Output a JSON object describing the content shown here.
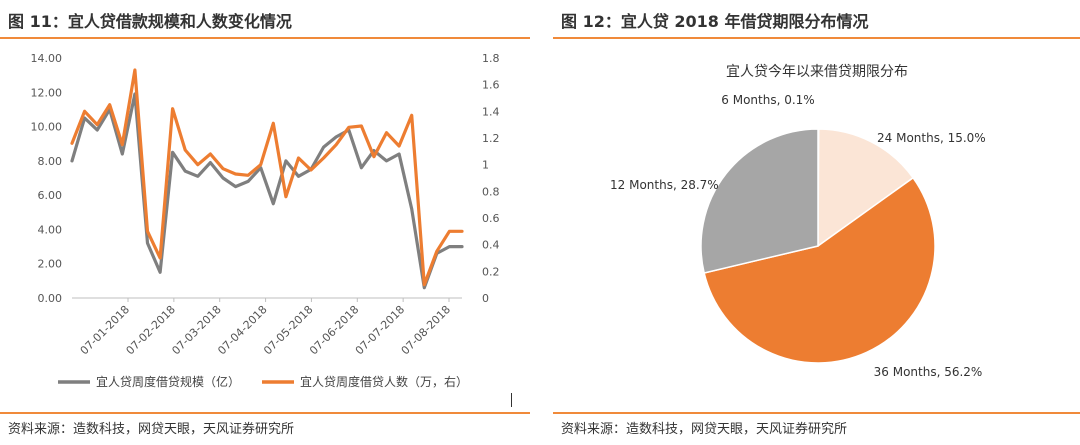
{
  "left": {
    "figure_title": "图 11：宜人贷借款规模和人数变化情况",
    "source": "资料来源：造数科技，网贷天眼，天风证券研究所"
  },
  "right": {
    "figure_title": "图 12：宜人贷 2018 年借贷期限分布情况",
    "source": "资料来源：造数科技，网贷天眼，天风证券研究所"
  },
  "colors": {
    "accent": "#F08A3A",
    "gray_series": "#7F7F7F",
    "orange_series": "#ED7D31",
    "pie_gray": "#A6A6A6",
    "pie_peach": "#FBE5D6"
  },
  "chart_data": [
    {
      "type": "line",
      "title": "",
      "x_ticks": [
        "07-01-2018",
        "07-02-2018",
        "07-03-2018",
        "07-04-2018",
        "07-05-2018",
        "07-06-2018",
        "07-07-2018",
        "07-08-2018"
      ],
      "y_left": {
        "range": [
          0,
          14
        ],
        "ticks": [
          "0.00",
          "2.00",
          "4.00",
          "6.00",
          "8.00",
          "10.00",
          "12.00",
          "14.00"
        ]
      },
      "y_right": {
        "range": [
          0,
          1.8
        ],
        "ticks": [
          "0",
          "0.2",
          "0.4",
          "0.6",
          "0.8",
          "1",
          "1.2",
          "1.4",
          "1.6",
          "1.8"
        ]
      },
      "legend_position": "bottom",
      "series": [
        {
          "name": "宜人贷周度借贷规模（亿）",
          "axis": "left",
          "color": "#7F7F7F",
          "values": [
            8.0,
            10.5,
            9.8,
            11.0,
            8.4,
            11.9,
            3.2,
            1.5,
            8.5,
            7.4,
            7.1,
            7.9,
            7.0,
            6.5,
            6.8,
            7.6,
            5.5,
            8.0,
            7.1,
            7.5,
            8.8,
            9.4,
            9.8,
            7.6,
            8.6,
            8.0,
            8.4,
            5.2,
            0.6,
            2.6,
            3.0,
            3.0
          ]
        },
        {
          "name": "宜人贷周度借贷人数（万，右）",
          "axis": "right",
          "color": "#ED7D31",
          "values": [
            1.16,
            1.4,
            1.3,
            1.45,
            1.15,
            1.71,
            0.5,
            0.3,
            1.42,
            1.11,
            1.0,
            1.08,
            0.97,
            0.93,
            0.92,
            1.0,
            1.31,
            0.76,
            1.05,
            0.96,
            1.05,
            1.15,
            1.28,
            1.29,
            1.06,
            1.24,
            1.14,
            1.37,
            0.1,
            0.35,
            0.5,
            0.5
          ]
        }
      ]
    },
    {
      "type": "pie",
      "title": "宜人贷今年以来借贷期限分布",
      "slices": [
        {
          "label": "6 Months, 0.1%",
          "value": 0.1,
          "color": "#7F7F7F"
        },
        {
          "label": "24 Months, 15.0%",
          "value": 15.0,
          "color": "#FBE5D6"
        },
        {
          "label": "36 Months, 56.2%",
          "value": 56.2,
          "color": "#ED7D31"
        },
        {
          "label": "12 Months, 28.7%",
          "value": 28.7,
          "color": "#A6A6A6"
        }
      ]
    }
  ]
}
